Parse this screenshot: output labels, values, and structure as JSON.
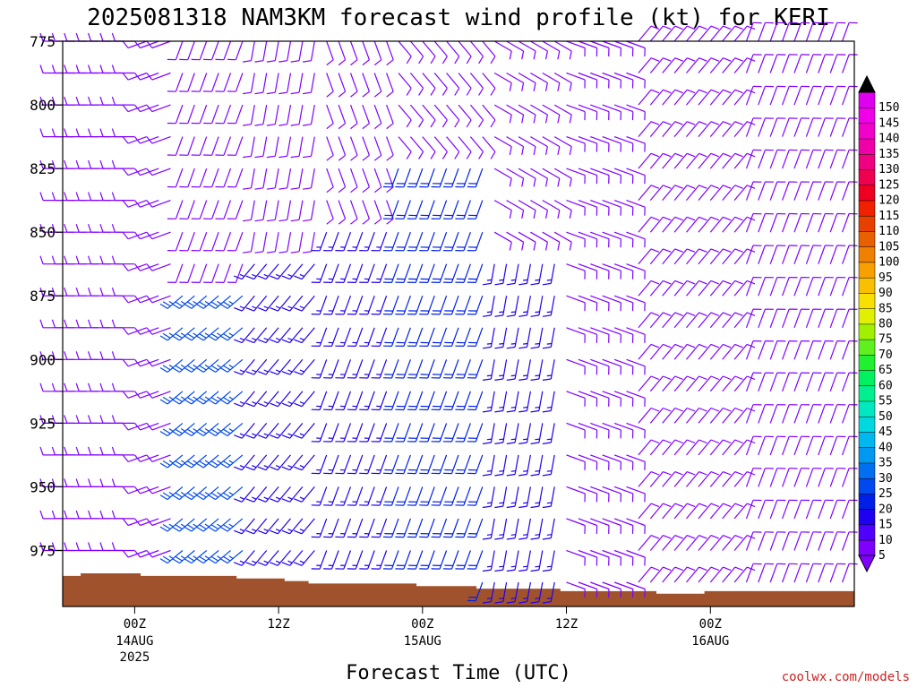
{
  "chart_data": {
    "type": "wind-barb-time-section",
    "title": "2025081318 NAM3KM forecast wind profile (kt) for KERI",
    "xlabel": "Forecast Time (UTC)",
    "ylabel": "",
    "credit": "coolwx.com/models",
    "y_axis": {
      "ticks": [
        775,
        800,
        825,
        850,
        875,
        900,
        925,
        950,
        975
      ],
      "range": [
        775,
        1000
      ],
      "inverted": true,
      "unit": "hPa"
    },
    "x_axis": {
      "start": "2025-08-13 18Z",
      "end": "2025-08-16 12Z",
      "range_hours": [
        -6,
        60
      ],
      "ticks": [
        {
          "hour": 0,
          "label": "00Z",
          "sublabel": "14AUG",
          "sublabel2": "2025"
        },
        {
          "hour": 12,
          "label": "12Z",
          "sublabel": "",
          "sublabel2": ""
        },
        {
          "hour": 24,
          "label": "00Z",
          "sublabel": "15AUG",
          "sublabel2": ""
        },
        {
          "hour": 36,
          "label": "12Z",
          "sublabel": "",
          "sublabel2": ""
        },
        {
          "hour": 48,
          "label": "00Z",
          "sublabel": "16AUG",
          "sublabel2": ""
        }
      ]
    },
    "colorbar": {
      "unit": "kt",
      "levels": [
        5,
        10,
        15,
        20,
        25,
        30,
        35,
        40,
        45,
        50,
        55,
        60,
        65,
        70,
        75,
        80,
        85,
        90,
        95,
        100,
        105,
        110,
        115,
        120,
        125,
        130,
        135,
        140,
        145,
        150
      ],
      "colors": [
        "#8000ff",
        "#5000ff",
        "#2000f0",
        "#0020e8",
        "#0048f0",
        "#0070f0",
        "#0098f0",
        "#00b8f0",
        "#00d8e0",
        "#00e8c0",
        "#00f090",
        "#00f060",
        "#20f030",
        "#60f020",
        "#a0f000",
        "#e0f000",
        "#f8e000",
        "#f8c000",
        "#f8a000",
        "#f08000",
        "#e86000",
        "#e84000",
        "#f02000",
        "#f00020",
        "#f00050",
        "#f00080",
        "#f000a8",
        "#f000c8",
        "#f000e8",
        "#e000f0"
      ],
      "extend": "both"
    },
    "surface_pressure": {
      "hours": [
        -6,
        -5,
        -4,
        -3,
        -2,
        -1,
        0,
        1,
        2,
        3,
        4,
        5,
        6,
        7,
        8,
        9,
        10,
        11,
        12,
        13,
        14,
        15,
        16,
        17,
        18,
        19,
        20,
        21,
        22,
        23,
        24,
        25,
        26,
        27,
        28,
        29,
        30,
        31,
        32,
        33,
        34,
        35,
        36,
        37,
        38,
        39,
        40,
        41,
        42,
        43,
        44,
        45,
        46,
        47,
        48,
        49,
        50,
        51,
        52,
        53,
        54,
        55,
        56,
        57,
        58,
        59,
        60
      ],
      "hPa": [
        985,
        985,
        984,
        984,
        984,
        984,
        984,
        985,
        985,
        985,
        985,
        985,
        985,
        985,
        985,
        986,
        986,
        986,
        986,
        987,
        987,
        988,
        988,
        988,
        988,
        988,
        988,
        988,
        988,
        988,
        989,
        989,
        989,
        989,
        989,
        990,
        990,
        990,
        990,
        990,
        990,
        990,
        991,
        991,
        991,
        991,
        991,
        991,
        991,
        991,
        992,
        992,
        992,
        992,
        991,
        991,
        991,
        991,
        991,
        991,
        991,
        991,
        991,
        991,
        991,
        991,
        991
      ]
    },
    "wind_barbs": {
      "hour_start": -6,
      "hour_end": 59,
      "hour_step": 1,
      "levels": [
        775,
        787.5,
        800,
        812.5,
        825,
        837.5,
        850,
        862.5,
        875,
        887.5,
        900,
        912.5,
        925,
        937.5,
        950,
        962.5,
        975,
        987.5
      ],
      "segments": [
        {
          "hours": [
            -6,
            0
          ],
          "levels": [
            775,
            987.5
          ],
          "dir": 270,
          "speed": 8
        },
        {
          "hours": [
            1,
            3
          ],
          "levels": [
            775,
            1000
          ],
          "dir": 250,
          "speed": 8
        },
        {
          "hours": [
            4,
            9
          ],
          "levels": [
            775,
            862.5
          ],
          "dir": 200,
          "speed": 8
        },
        {
          "hours": [
            4,
            9
          ],
          "levels": [
            875,
            987.5
          ],
          "dir": 230,
          "speed": 25
        },
        {
          "hours": [
            10,
            15
          ],
          "levels": [
            775,
            850
          ],
          "dir": 190,
          "speed": 8
        },
        {
          "hours": [
            10,
            15
          ],
          "levels": [
            862.5,
            987.5
          ],
          "dir": 220,
          "speed": 15
        },
        {
          "hours": [
            16,
            21
          ],
          "levels": [
            775,
            837.5
          ],
          "dir": 160,
          "speed": 8
        },
        {
          "hours": [
            16,
            21
          ],
          "levels": [
            850,
            987.5
          ],
          "dir": 200,
          "speed": 15
        },
        {
          "hours": [
            22,
            29
          ],
          "levels": [
            775,
            812.5
          ],
          "dir": 140,
          "speed": 8
        },
        {
          "hours": [
            22,
            29
          ],
          "levels": [
            825,
            987.5
          ],
          "dir": 200,
          "speed": 20
        },
        {
          "hours": [
            30,
            35
          ],
          "levels": [
            775,
            850
          ],
          "dir": 120,
          "speed": 8
        },
        {
          "hours": [
            30,
            35
          ],
          "levels": [
            862.5,
            987.5
          ],
          "dir": 190,
          "speed": 15
        },
        {
          "hours": [
            36,
            41
          ],
          "levels": [
            775,
            987.5
          ],
          "dir": 110,
          "speed": 8
        },
        {
          "hours": [
            42,
            50
          ],
          "levels": [
            775,
            987.5
          ],
          "dir": 40,
          "speed": 8
        },
        {
          "hours": [
            51,
            59
          ],
          "levels": [
            775,
            987.5
          ],
          "dir": 20,
          "speed": 8
        }
      ]
    }
  }
}
